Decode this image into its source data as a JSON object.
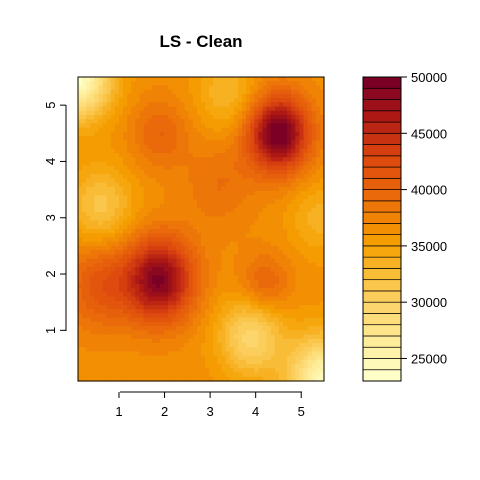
{
  "chart_data": {
    "type": "heatmap",
    "title": "LS - Clean",
    "xlabel": "",
    "ylabel": "",
    "xlim": [
      0.1,
      5.5
    ],
    "ylim": [
      0.1,
      5.5
    ],
    "x_ticks": [
      "1",
      "2",
      "3",
      "4",
      "5"
    ],
    "y_ticks": [
      "1",
      "2",
      "3",
      "4",
      "5"
    ],
    "colorbar": {
      "range": [
        23000,
        50000
      ],
      "ticks": [
        "25000",
        "30000",
        "35000",
        "40000",
        "45000",
        "50000"
      ],
      "levels": 27
    },
    "peaks": [
      {
        "x": 1.9,
        "y": 1.9,
        "value": 48500
      },
      {
        "x": 4.5,
        "y": 4.5,
        "value": 50000
      }
    ],
    "colors": {
      "low": "#ffffc8",
      "mid": "#f5a000",
      "high": "#7a0026"
    }
  }
}
